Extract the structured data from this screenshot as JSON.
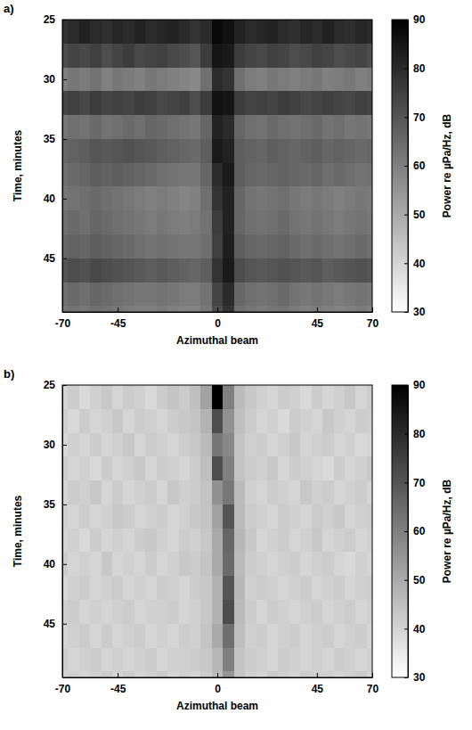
{
  "chart_data": [
    {
      "type": "heatmap",
      "panel_label": "a)",
      "xlabel": "Azimuthal beam",
      "ylabel": "Time, minutes",
      "xlim": [
        -70,
        70
      ],
      "ylim": [
        25,
        49.5
      ],
      "xticks": [
        -70,
        -45,
        0,
        45,
        70
      ],
      "yticks": [
        25,
        30,
        35,
        40,
        45
      ],
      "x": [
        -70,
        -65,
        -60,
        -55,
        -50,
        -45,
        -40,
        -35,
        -30,
        -25,
        -20,
        -15,
        -10,
        -5,
        0,
        5,
        10,
        15,
        20,
        25,
        30,
        35,
        40,
        45,
        50,
        55,
        60,
        65,
        70
      ],
      "y": [
        26,
        28,
        30,
        32,
        34,
        36,
        38,
        40,
        42,
        44,
        46,
        48,
        50
      ],
      "z": [
        [
          78,
          80,
          82,
          80,
          79,
          81,
          80,
          82,
          80,
          81,
          82,
          80,
          78,
          80,
          88,
          86,
          82,
          80,
          81,
          82,
          80,
          79,
          81,
          80,
          82,
          80,
          79,
          81,
          80
        ],
        [
          72,
          74,
          73,
          75,
          72,
          74,
          76,
          73,
          74,
          75,
          73,
          72,
          70,
          76,
          85,
          84,
          76,
          74,
          73,
          75,
          74,
          72,
          73,
          75,
          74,
          72,
          73,
          74,
          72
        ],
        [
          60,
          62,
          61,
          63,
          60,
          62,
          61,
          60,
          62,
          61,
          60,
          59,
          58,
          64,
          80,
          78,
          64,
          61,
          60,
          62,
          61,
          60,
          61,
          62,
          60,
          61,
          62,
          60,
          61
        ],
        [
          74,
          75,
          73,
          76,
          74,
          75,
          74,
          76,
          75,
          73,
          74,
          75,
          72,
          76,
          86,
          85,
          76,
          74,
          75,
          74,
          76,
          75,
          73,
          74,
          75,
          74,
          73,
          75,
          74
        ],
        [
          62,
          64,
          63,
          65,
          63,
          64,
          65,
          64,
          66,
          65,
          64,
          63,
          62,
          66,
          82,
          80,
          66,
          64,
          63,
          65,
          64,
          63,
          64,
          65,
          63,
          64,
          62,
          63,
          62
        ],
        [
          66,
          67,
          68,
          70,
          69,
          70,
          71,
          70,
          69,
          68,
          67,
          66,
          65,
          68,
          84,
          82,
          68,
          67,
          66,
          68,
          67,
          66,
          67,
          68,
          66,
          67,
          66,
          65,
          66
        ],
        [
          64,
          65,
          66,
          68,
          67,
          68,
          67,
          66,
          65,
          64,
          63,
          62,
          62,
          66,
          80,
          84,
          68,
          66,
          65,
          66,
          67,
          66,
          65,
          66,
          64,
          65,
          64,
          63,
          64
        ],
        [
          62,
          63,
          64,
          65,
          64,
          63,
          62,
          61,
          60,
          61,
          60,
          59,
          60,
          64,
          78,
          82,
          66,
          63,
          62,
          63,
          64,
          62,
          61,
          62,
          61,
          60,
          61,
          62,
          61
        ],
        [
          64,
          65,
          64,
          66,
          65,
          64,
          63,
          62,
          61,
          62,
          61,
          60,
          61,
          63,
          76,
          82,
          66,
          64,
          63,
          64,
          65,
          63,
          62,
          63,
          62,
          61,
          62,
          63,
          62
        ],
        [
          66,
          67,
          66,
          68,
          67,
          66,
          65,
          64,
          63,
          64,
          63,
          62,
          62,
          64,
          75,
          83,
          68,
          66,
          65,
          66,
          67,
          65,
          64,
          65,
          64,
          63,
          64,
          65,
          64
        ],
        [
          70,
          72,
          71,
          73,
          72,
          71,
          70,
          69,
          68,
          69,
          68,
          67,
          66,
          68,
          78,
          84,
          72,
          70,
          69,
          70,
          71,
          70,
          69,
          70,
          68,
          69,
          70,
          71,
          70
        ],
        [
          64,
          65,
          64,
          66,
          65,
          64,
          63,
          62,
          62,
          63,
          62,
          61,
          61,
          63,
          74,
          80,
          66,
          64,
          63,
          64,
          65,
          63,
          62,
          63,
          62,
          61,
          62,
          63,
          62
        ],
        [
          62,
          63,
          62,
          64,
          63,
          62,
          61,
          60,
          60,
          61,
          60,
          59,
          59,
          62,
          72,
          78,
          64,
          62,
          61,
          62,
          63,
          61,
          60,
          61,
          60,
          59,
          60,
          61,
          60
        ]
      ],
      "colorbar": {
        "label": "Power re µPa/Hz, dB",
        "range": [
          30,
          90
        ],
        "ticks": [
          30,
          40,
          50,
          60,
          70,
          80,
          90
        ]
      }
    },
    {
      "type": "heatmap",
      "panel_label": "b)",
      "xlabel": "Azimuthal beam",
      "ylabel": "Time, minutes",
      "xlim": [
        -70,
        70
      ],
      "ylim": [
        25,
        49.5
      ],
      "xticks": [
        -70,
        -45,
        0,
        45,
        70
      ],
      "yticks": [
        25,
        30,
        35,
        40,
        45
      ],
      "x": [
        -70,
        -65,
        -60,
        -55,
        -50,
        -45,
        -40,
        -35,
        -30,
        -25,
        -20,
        -15,
        -10,
        -5,
        0,
        5,
        10,
        15,
        20,
        25,
        30,
        35,
        40,
        45,
        50,
        55,
        60,
        65,
        70
      ],
      "y": [
        26,
        28,
        30,
        32,
        34,
        36,
        38,
        40,
        42,
        44,
        46,
        48,
        50
      ],
      "z": [
        [
          40,
          42,
          39,
          41,
          43,
          40,
          42,
          41,
          39,
          42,
          44,
          42,
          45,
          52,
          90,
          60,
          46,
          43,
          41,
          40,
          42,
          41,
          39,
          42,
          40,
          41,
          43,
          40,
          42
        ],
        [
          41,
          39,
          42,
          40,
          41,
          43,
          40,
          42,
          41,
          40,
          42,
          43,
          44,
          48,
          72,
          56,
          45,
          42,
          40,
          41,
          39,
          42,
          41,
          40,
          43,
          41,
          40,
          42,
          41
        ],
        [
          39,
          41,
          40,
          42,
          40,
          41,
          43,
          40,
          42,
          41,
          40,
          42,
          43,
          46,
          62,
          58,
          44,
          41,
          42,
          40,
          41,
          43,
          40,
          41,
          42,
          40,
          41,
          39,
          40
        ],
        [
          42,
          40,
          41,
          39,
          42,
          40,
          41,
          43,
          40,
          42,
          41,
          40,
          42,
          45,
          72,
          60,
          44,
          42,
          41,
          43,
          40,
          42,
          41,
          40,
          39,
          42,
          40,
          41,
          43
        ],
        [
          40,
          42,
          41,
          43,
          40,
          42,
          40,
          41,
          42,
          40,
          43,
          41,
          42,
          44,
          56,
          62,
          46,
          41,
          40,
          42,
          41,
          40,
          43,
          41,
          42,
          40,
          41,
          42,
          40
        ],
        [
          41,
          40,
          42,
          40,
          41,
          43,
          42,
          40,
          41,
          42,
          40,
          41,
          43,
          44,
          52,
          70,
          46,
          42,
          41,
          40,
          42,
          41,
          40,
          42,
          41,
          43,
          40,
          41,
          42
        ],
        [
          40,
          41,
          39,
          42,
          40,
          41,
          40,
          42,
          43,
          41,
          40,
          42,
          41,
          43,
          50,
          66,
          47,
          43,
          40,
          41,
          42,
          40,
          41,
          43,
          40,
          41,
          42,
          40,
          41
        ],
        [
          42,
          40,
          41,
          40,
          43,
          40,
          41,
          40,
          42,
          40,
          41,
          43,
          42,
          44,
          50,
          65,
          46,
          42,
          41,
          40,
          41,
          42,
          40,
          41,
          42,
          40,
          39,
          41,
          40
        ],
        [
          39,
          41,
          42,
          40,
          41,
          42,
          40,
          41,
          40,
          42,
          41,
          40,
          42,
          43,
          48,
          70,
          47,
          41,
          42,
          41,
          40,
          41,
          42,
          40,
          41,
          42,
          40,
          41,
          42
        ],
        [
          41,
          42,
          40,
          41,
          40,
          41,
          42,
          40,
          41,
          41,
          42,
          40,
          41,
          43,
          48,
          72,
          46,
          42,
          40,
          42,
          41,
          40,
          41,
          42,
          40,
          41,
          42,
          40,
          41
        ],
        [
          40,
          41,
          42,
          40,
          42,
          40,
          41,
          42,
          40,
          41,
          40,
          42,
          41,
          44,
          50,
          64,
          45,
          41,
          42,
          40,
          41,
          42,
          40,
          41,
          42,
          40,
          41,
          42,
          40
        ],
        [
          42,
          40,
          41,
          42,
          40,
          41,
          40,
          41,
          42,
          40,
          41,
          41,
          42,
          43,
          47,
          60,
          44,
          42,
          41,
          40,
          42,
          41,
          40,
          41,
          40,
          42,
          41,
          40,
          41
        ],
        [
          40,
          41,
          40,
          41,
          42,
          40,
          42,
          40,
          41,
          42,
          40,
          41,
          40,
          42,
          46,
          55,
          44,
          41,
          40,
          42,
          41,
          40,
          42,
          41,
          41,
          40,
          41,
          42,
          40
        ]
      ],
      "colorbar": {
        "label": "Power re µPa/Hz, dB",
        "range": [
          30,
          90
        ],
        "ticks": [
          30,
          40,
          50,
          60,
          70,
          80,
          90
        ]
      }
    }
  ]
}
